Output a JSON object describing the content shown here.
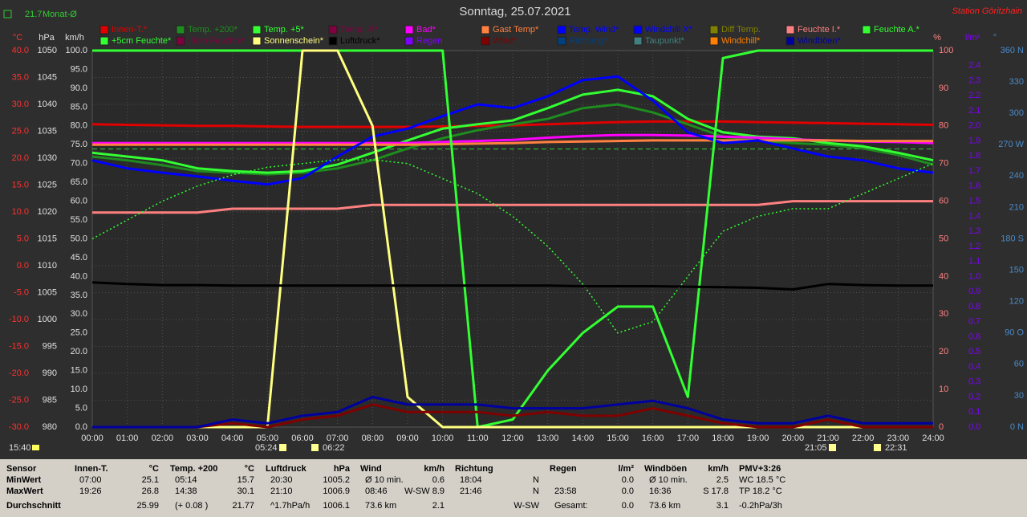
{
  "chart_data": {
    "type": "line",
    "title": "Sonntag, 25.07.2021",
    "station": "Station Göritzhain",
    "clock": "15:40",
    "monthly_avg": {
      "value": 21.7,
      "label": "Monat-Ø",
      "color": "#33cc33"
    },
    "sun_events": [
      "05:24",
      "06:22",
      "21:05",
      "22:31"
    ],
    "grid": true,
    "x": [
      0,
      1,
      2,
      3,
      4,
      5,
      6,
      7,
      8,
      9,
      10,
      11,
      12,
      13,
      14,
      15,
      16,
      17,
      18,
      19,
      20,
      21,
      22,
      23,
      24
    ],
    "xlim": [
      0,
      24
    ],
    "xticks": [
      {
        "value": 0,
        "label": "00:00"
      },
      {
        "value": 1,
        "label": "01:00"
      },
      {
        "value": 2,
        "label": "02:00"
      },
      {
        "value": 3,
        "label": "03:00"
      },
      {
        "value": 4,
        "label": "04:00"
      },
      {
        "value": 5,
        "label": "05:00"
      },
      {
        "value": 6,
        "label": "06:00"
      },
      {
        "value": 7,
        "label": "07:00"
      },
      {
        "value": 8,
        "label": "08:00"
      },
      {
        "value": 9,
        "label": "09:00"
      },
      {
        "value": 10,
        "label": "10:00"
      },
      {
        "value": 11,
        "label": "11:00"
      },
      {
        "value": 12,
        "label": "12:00"
      },
      {
        "value": 13,
        "label": "13:00"
      },
      {
        "value": 14,
        "label": "14:00"
      },
      {
        "value": 15,
        "label": "15:00"
      },
      {
        "value": 16,
        "label": "16:00"
      },
      {
        "value": 17,
        "label": "17:00"
      },
      {
        "value": 18,
        "label": "18:00"
      },
      {
        "value": 19,
        "label": "19:00"
      },
      {
        "value": 20,
        "label": "20:00"
      },
      {
        "value": 21,
        "label": "21:00"
      },
      {
        "value": 22,
        "label": "22:00"
      },
      {
        "value": 23,
        "label": "23:00"
      },
      {
        "value": 24,
        "label": "24:00"
      }
    ],
    "axes": [
      {
        "id": "temp",
        "unit": "°C",
        "color": "#ff3030",
        "lim": [
          -30,
          40
        ],
        "ticks": [
          {
            "value": 40,
            "label": "40.0"
          },
          {
            "value": 35,
            "label": "35.0"
          },
          {
            "value": 30,
            "label": "30.0"
          },
          {
            "value": 25,
            "label": "25.0"
          },
          {
            "value": 20,
            "label": "20.0"
          },
          {
            "value": 15,
            "label": "15.0"
          },
          {
            "value": 10,
            "label": "10.0"
          },
          {
            "value": 5,
            "label": "5.0"
          },
          {
            "value": 0,
            "label": "0.0"
          },
          {
            "value": -5,
            "label": "-5.0"
          },
          {
            "value": -10,
            "label": "-10.0"
          },
          {
            "value": -15,
            "label": "-15.0"
          },
          {
            "value": -20,
            "label": "-20.0"
          },
          {
            "value": -25,
            "label": "-25.0"
          },
          {
            "value": -30,
            "label": "-30.0"
          }
        ]
      },
      {
        "id": "pressure",
        "unit": "hPa",
        "color": "#e0e0e0",
        "lim": [
          980,
          1050
        ],
        "ticks": [
          1050,
          1045,
          1040,
          1035,
          1030,
          1025,
          1020,
          1015,
          1010,
          1005,
          1000,
          995,
          990,
          985,
          980
        ]
      },
      {
        "id": "speed",
        "unit": "km/h",
        "color": "#e0e0e0",
        "lim": [
          0,
          100
        ],
        "ticks": [
          {
            "value": 100,
            "label": "100.0"
          },
          {
            "value": 95,
            "label": "95.0"
          },
          {
            "value": 90,
            "label": "90.0"
          },
          {
            "value": 85,
            "label": "85.0"
          },
          {
            "value": 80,
            "label": "80.0"
          },
          {
            "value": 75,
            "label": "75.0"
          },
          {
            "value": 70,
            "label": "70.0"
          },
          {
            "value": 65,
            "label": "65.0"
          },
          {
            "value": 60,
            "label": "60.0"
          },
          {
            "value": 55,
            "label": "55.0"
          },
          {
            "value": 50,
            "label": "50.0"
          },
          {
            "value": 45,
            "label": "45.0"
          },
          {
            "value": 40,
            "label": "40.0"
          },
          {
            "value": 35,
            "label": "35.0"
          },
          {
            "value": 30,
            "label": "30.0"
          },
          {
            "value": 25,
            "label": "25.0"
          },
          {
            "value": 20,
            "label": "20.0"
          },
          {
            "value": 15,
            "label": "15.0"
          },
          {
            "value": 10,
            "label": "10.0"
          },
          {
            "value": 5,
            "label": "5.0"
          },
          {
            "value": 0,
            "label": "0.0"
          }
        ]
      },
      {
        "id": "percent",
        "unit": "%",
        "color": "#ff8080",
        "lim": [
          0,
          100
        ],
        "ticks": [
          100,
          90,
          80,
          70,
          60,
          50,
          40,
          30,
          20,
          10,
          0
        ]
      },
      {
        "id": "rain",
        "unit": "l/m²",
        "color": "#8000ff",
        "lim": [
          0,
          2.5
        ],
        "ticks": [
          2.4,
          2.3,
          2.2,
          2.1,
          {
            "value": 2,
            "label": "2.0"
          },
          1.9,
          1.8,
          1.7,
          1.6,
          1.5,
          1.4,
          1.3,
          1.2,
          1.1,
          {
            "value": 1,
            "label": "1.0"
          },
          0.9,
          0.8,
          0.7,
          0.6,
          0.5,
          0.4,
          0.3,
          0.2,
          0.1,
          {
            "value": 0,
            "label": "0.0"
          }
        ]
      },
      {
        "id": "direction",
        "unit": "°",
        "color": "#4a8ac8",
        "lim": [
          0,
          360
        ],
        "ticks": [
          {
            "value": 360,
            "label": "360 N"
          },
          330,
          300,
          {
            "value": 270,
            "label": "270 W"
          },
          240,
          210,
          {
            "value": 180,
            "label": "180 S"
          },
          150,
          120,
          {
            "value": 90,
            "label": "90 O"
          },
          60,
          30,
          {
            "value": 0,
            "label": "0 N"
          }
        ]
      }
    ],
    "series": [
      {
        "name": "Innen-T.*",
        "color": "#e00000",
        "axis": "temp",
        "values": [
          26.3,
          26.2,
          26.1,
          26.0,
          26.0,
          25.9,
          25.8,
          25.8,
          25.8,
          25.8,
          25.9,
          26.0,
          26.1,
          26.3,
          26.5,
          26.7,
          26.8,
          26.8,
          26.8,
          26.7,
          26.6,
          26.5,
          26.4,
          26.3,
          26.2
        ]
      },
      {
        "name": "Temp. +200*",
        "color": "#1e8c1e",
        "axis": "temp",
        "values": [
          20.3,
          19.6,
          18.7,
          17.6,
          17.3,
          17.0,
          17.3,
          18.1,
          19.6,
          21.8,
          23.7,
          25.2,
          26.3,
          27.3,
          29.3,
          30.0,
          28.5,
          26.3,
          24.0,
          23.3,
          22.8,
          22.5,
          21.8,
          20.6,
          18.8
        ]
      },
      {
        "name": "Temp. +5*",
        "color": "#33ff33",
        "axis": "temp",
        "values": [
          21.0,
          20.3,
          19.6,
          18.1,
          17.6,
          17.3,
          17.6,
          18.8,
          21.0,
          23.3,
          25.5,
          26.3,
          27.0,
          29.3,
          31.8,
          32.7,
          31.5,
          27.3,
          24.8,
          24.0,
          23.7,
          22.8,
          22.2,
          21.0,
          19.6
        ]
      },
      {
        "name": "Temp. -5*",
        "color": "#800040",
        "axis": "temp"
      },
      {
        "name": "Bad*",
        "color": "#ff00ff",
        "axis": "temp",
        "values": [
          22.8,
          22.8,
          22.8,
          22.8,
          22.8,
          22.8,
          22.8,
          22.8,
          22.8,
          22.8,
          23.0,
          23.2,
          23.4,
          23.8,
          24.1,
          24.3,
          24.3,
          24.2,
          24.0,
          23.8,
          23.5,
          23.3,
          23.1,
          23.0,
          22.8
        ]
      },
      {
        "name": "Gast Temp*",
        "color": "#ff8040",
        "axis": "temp",
        "values": [
          22.5,
          22.5,
          22.5,
          22.5,
          22.5,
          22.5,
          22.5,
          22.5,
          22.5,
          22.5,
          22.6,
          22.7,
          22.8,
          23.0,
          23.1,
          23.2,
          23.3,
          23.3,
          23.3,
          23.3,
          23.3,
          23.3,
          23.2,
          23.2,
          23.2
        ]
      },
      {
        "name": "Temp. Wind*",
        "color": "#0000ff",
        "axis": "temp",
        "values": [
          19.6,
          18.1,
          17.3,
          16.6,
          15.8,
          15.1,
          16.3,
          20.3,
          24.0,
          25.5,
          27.8,
          30.0,
          29.3,
          31.5,
          34.5,
          35.2,
          30.7,
          24.8,
          22.8,
          23.3,
          21.8,
          20.3,
          19.6,
          18.1,
          17.3
        ]
      },
      {
        "name": "Windchill X*",
        "color": "#0000ff",
        "axis": "temp"
      },
      {
        "name": "Diff Temp.",
        "color": "#808000",
        "axis": "temp"
      },
      {
        "name": "Feuchte I.*",
        "color": "#ff8080",
        "axis": "percent",
        "values": [
          57,
          57,
          57,
          57,
          58,
          58,
          58,
          58,
          59,
          59,
          59,
          59,
          59,
          59,
          59,
          59,
          59,
          59,
          59,
          59,
          60,
          60,
          60,
          60,
          60
        ]
      },
      {
        "name": "Feuchte A.*",
        "color": "#33ff33",
        "axis": "percent",
        "values": [
          100,
          100,
          100,
          100,
          100,
          100,
          100,
          100,
          100,
          100,
          100,
          0,
          2,
          15,
          25,
          32,
          32,
          8,
          98,
          100,
          100,
          100,
          100,
          100,
          100
        ]
      },
      {
        "name": "+5cm Feuchte*",
        "color": "#33ff33",
        "axis": "percent",
        "dashed": true,
        "values": [
          50,
          55,
          60,
          64,
          67,
          69,
          70,
          71,
          71,
          70,
          66,
          62,
          56,
          48,
          38,
          25,
          28,
          40,
          52,
          56,
          58,
          58,
          62,
          66,
          70
        ]
      },
      {
        "name": "-5cm Feuchte*",
        "color": "#800040",
        "axis": "percent"
      },
      {
        "name": "Sonnenschein*",
        "color": "#ffff80",
        "axis": "percent",
        "values": [
          0,
          0,
          0,
          0,
          0,
          0,
          100,
          100,
          80,
          8,
          0,
          0,
          0,
          0,
          0,
          0,
          0,
          0,
          0,
          0,
          0,
          0,
          0,
          0,
          0
        ]
      },
      {
        "name": "Luftdruck*",
        "color": "#000000",
        "axis": "pressure",
        "values": [
          1006.9,
          1006.6,
          1006.4,
          1006.4,
          1006.3,
          1006.3,
          1006.3,
          1006.3,
          1006.3,
          1006.3,
          1006.3,
          1006.3,
          1006.3,
          1006.3,
          1006.2,
          1006.2,
          1006.2,
          1006.1,
          1006.0,
          1005.9,
          1005.6,
          1006.6,
          1006.4,
          1006.3,
          1006.3
        ]
      },
      {
        "name": "Regen",
        "color": "#8000ff",
        "axis": "rain"
      },
      {
        "name": "Wind*",
        "color": "#800000",
        "axis": "speed",
        "values": [
          0,
          0,
          0,
          0,
          1,
          0,
          2,
          3,
          6,
          4,
          4,
          4,
          3,
          4,
          3,
          3,
          5,
          3,
          1,
          0,
          0,
          2,
          0,
          0,
          0
        ]
      },
      {
        "name": "Richtung*",
        "color": "#004080",
        "axis": "direction"
      },
      {
        "name": "Taupunkt*",
        "color": "#408080",
        "axis": "temp"
      },
      {
        "name": "Windchill*",
        "color": "#ff8000",
        "axis": "temp"
      },
      {
        "name": "Windböen*",
        "color": "#0000a0",
        "axis": "speed",
        "values": [
          0,
          0,
          0,
          0,
          2,
          1,
          3,
          4,
          8,
          6,
          6,
          6,
          5,
          5,
          5,
          6,
          7,
          5,
          2,
          1,
          1,
          3,
          1,
          1,
          1
        ]
      }
    ]
  },
  "summary": {
    "row_labels": [
      "Sensor",
      "MinWert",
      "MaxWert",
      "Durchschnitt"
    ],
    "columns": [
      {
        "header": "Innen-T.",
        "unit": "°C",
        "rows": [
          {
            "left": "07:00",
            "right": "25.1"
          },
          {
            "left": "19:26",
            "right": "26.8"
          },
          {
            "right": "25.99"
          }
        ]
      },
      {
        "header": "Temp. +200",
        "unit": "°C",
        "rows": [
          {
            "left": "05:14",
            "right": "15.7"
          },
          {
            "left": "14:38",
            "right": "30.1"
          },
          {
            "left": "(+ 0.08 )",
            "right": "21.77"
          }
        ]
      },
      {
        "header": "Luftdruck",
        "unit": "hPa",
        "rows": [
          {
            "left": "20:30",
            "right": "1005.2"
          },
          {
            "left": "21:10",
            "right": "1006.9"
          },
          {
            "left": "^1.7hPa/h",
            "right": "1006.1"
          }
        ]
      },
      {
        "header": "Wind",
        "unit": "km/h",
        "rows": [
          {
            "left": "Ø 10 min.",
            "right": "0.6"
          },
          {
            "left": "08:46",
            "right": "W-SW 8.9"
          },
          {
            "left": "73.6 km",
            "right": "2.1"
          }
        ]
      },
      {
        "header": "Richtung",
        "rows": [
          {
            "left": "18:04",
            "right": "N"
          },
          {
            "left": "21:46",
            "right": "N"
          },
          {
            "right": "W-SW"
          }
        ]
      },
      {
        "header": "Regen",
        "unit": "l/m²",
        "rows": [
          {
            "right": "0.0"
          },
          {
            "left": "23:58",
            "right": "0.0"
          },
          {
            "left": "Gesamt:",
            "right": "0.0"
          }
        ]
      },
      {
        "header": "Windböen",
        "unit": "km/h",
        "rows": [
          {
            "left": "Ø 10 min.",
            "right": "2.5"
          },
          {
            "left": "16:36",
            "right": "S 17.8"
          },
          {
            "left": "73.6 km",
            "right": "3.1"
          }
        ]
      },
      {
        "header": "PMV+3:26",
        "rows": [
          {
            "left": "WC 18.5 °C"
          },
          {
            "left": "TP 18.2 °C"
          },
          {
            "left": "-0.2hPa/3h"
          }
        ]
      }
    ]
  }
}
